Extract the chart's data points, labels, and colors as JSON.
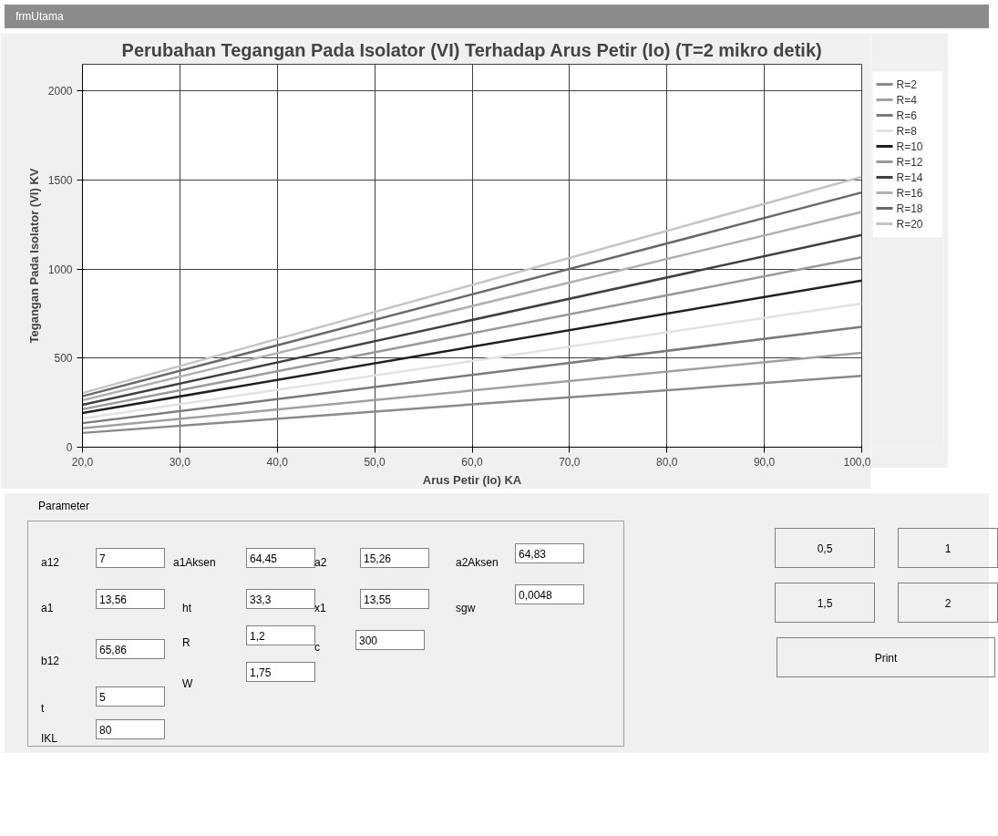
{
  "chart_data": {
    "type": "line",
    "title": "Perubahan Tegangan Pada Isolator (VI) Terhadap Arus Petir (Io) (T=2 mikro detik)",
    "xlabel": "Arus Petir (Io) KA",
    "ylabel": "Tegangan Pada Isolator (VI) KV",
    "x": [
      20,
      100
    ],
    "series": [
      {
        "name": "R=2",
        "color": "#8a8a8a",
        "values": [
          80,
          400
        ]
      },
      {
        "name": "R=4",
        "color": "#a0a0a0",
        "values": [
          106,
          530
        ]
      },
      {
        "name": "R=6",
        "color": "#7a7a7a",
        "values": [
          135,
          676
        ]
      },
      {
        "name": "R=8",
        "color": "#e2e2e2",
        "values": [
          161,
          806
        ]
      },
      {
        "name": "R=10",
        "color": "#202020",
        "values": [
          192,
          936
        ]
      },
      {
        "name": "R=12",
        "color": "#9a9a9a",
        "values": [
          213,
          1066
        ]
      },
      {
        "name": "R=14",
        "color": "#404040",
        "values": [
          238,
          1191
        ]
      },
      {
        "name": "R=16",
        "color": "#b0b0b0",
        "values": [
          264,
          1321
        ]
      },
      {
        "name": "R=18",
        "color": "#6a6a6a",
        "values": [
          286,
          1430
        ]
      },
      {
        "name": "R=20",
        "color": "#c4c4c4",
        "values": [
          304,
          1518
        ]
      }
    ],
    "xlim": [
      20,
      100
    ],
    "xticks": [
      {
        "value": 20,
        "label": "20,0"
      },
      {
        "value": 30,
        "label": "30,0"
      },
      {
        "value": 40,
        "label": "40,0"
      },
      {
        "value": 50,
        "label": "50,0"
      },
      {
        "value": 60,
        "label": "60,0"
      },
      {
        "value": 70,
        "label": "70,0"
      },
      {
        "value": 80,
        "label": "80,0"
      },
      {
        "value": 90,
        "label": "90,0"
      },
      {
        "value": 100,
        "label": "100,0"
      }
    ],
    "ylim": [
      0,
      2150
    ],
    "yticks": [
      0,
      500,
      1000,
      1500,
      2000
    ],
    "grid": true,
    "legend": "right",
    "marker": "none",
    "line_style": "solid",
    "annotations": [
      "frmUtama",
      "Parameter",
      "a12",
      "7",
      "a1Aksen",
      "64,45",
      "a2",
      "15,26",
      "a2Aksen",
      "64,83",
      "a1",
      "13,56",
      "ht",
      "33,3",
      "x1",
      "13,55",
      "sgw",
      "0,0048",
      "R",
      "1,2",
      "c",
      "300",
      "b12",
      "65,86",
      "W",
      "1,75",
      "t",
      "5",
      "IKL",
      "80",
      "0,5",
      "1",
      "1,5",
      "2",
      "Print"
    ]
  }
}
